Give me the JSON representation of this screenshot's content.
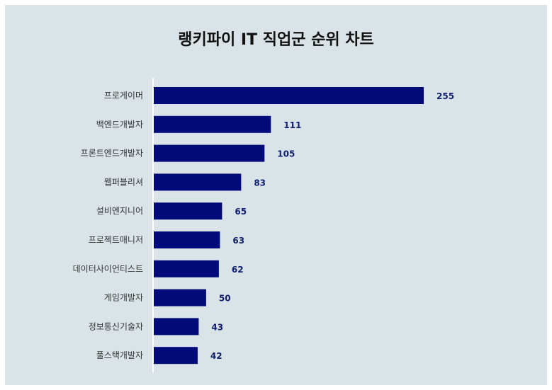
{
  "chart_data": {
    "type": "bar",
    "orientation": "horizontal",
    "title": "랭키파이 IT 직업군 순위 차트",
    "categories": [
      "프로게이머",
      "백엔드개발자",
      "프론트엔드개발자",
      "웹퍼블리셔",
      "설비엔지니어",
      "프로젝트매니저",
      "데이터사이언티스트",
      "게임개발자",
      "정보통신기술자",
      "풀스택개발자"
    ],
    "values": [
      255,
      111,
      105,
      83,
      65,
      63,
      62,
      50,
      43,
      42
    ],
    "xlabel": "",
    "ylabel": "",
    "xlim": [
      0,
      261
    ],
    "grid": false,
    "legend": "none",
    "bar_color": "#000a78",
    "value_label_color": "#10206e",
    "background_color": "#d9e3e8"
  }
}
